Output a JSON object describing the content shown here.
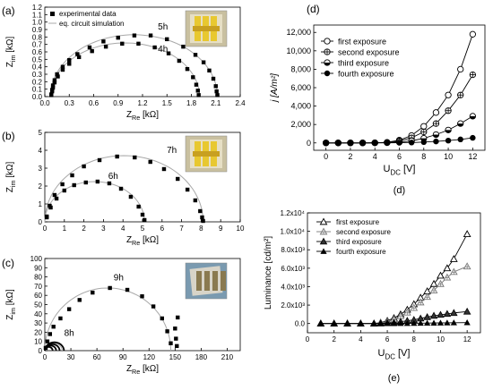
{
  "chart_data": [
    {
      "panel": "(a)",
      "type": "scatter",
      "xlim": [
        0,
        2.4
      ],
      "ylim": [
        0,
        1.2
      ],
      "xticks": [
        "0.0",
        "0.3",
        "0.6",
        "0.9",
        "1.2",
        "1.5",
        "1.8",
        "2.1",
        "2.4"
      ],
      "yticks": [
        "0.0",
        "0.1",
        "0.2",
        "0.3",
        "0.4",
        "0.5",
        "0.6",
        "0.7",
        "0.8",
        "0.9",
        "1.0",
        "1.1",
        "1.2"
      ],
      "xlabel": "Z",
      "xlabel_sub": "Re",
      "xlabel_unit": " [kΩ]",
      "ylabel": "Z",
      "ylabel_sub": "im",
      "ylabel_unit": " [kΩ]",
      "legend": [
        "experimental data",
        "eq. circuit simulation"
      ],
      "series": [
        {
          "name": "5h",
          "r0": 0.07,
          "r1": 2.12,
          "peak": 0.83,
          "points": [
            [
              0.08,
              0.03
            ],
            [
              0.09,
              0.09
            ],
            [
              0.1,
              0.15
            ],
            [
              0.12,
              0.22
            ],
            [
              0.15,
              0.3
            ],
            [
              0.22,
              0.4
            ],
            [
              0.3,
              0.49
            ],
            [
              0.4,
              0.57
            ],
            [
              0.55,
              0.66
            ],
            [
              0.72,
              0.74
            ],
            [
              0.9,
              0.79
            ],
            [
              1.1,
              0.82
            ],
            [
              1.3,
              0.82
            ],
            [
              1.5,
              0.77
            ],
            [
              1.7,
              0.67
            ],
            [
              1.85,
              0.56
            ],
            [
              1.95,
              0.46
            ],
            [
              2.02,
              0.35
            ],
            [
              2.07,
              0.24
            ],
            [
              2.1,
              0.14
            ],
            [
              2.11,
              0.07
            ],
            [
              2.12,
              0.02
            ]
          ]
        },
        {
          "name": "4h",
          "r0": 0.07,
          "r1": 1.9,
          "peak": 0.72,
          "points": [
            [
              0.08,
              0.02
            ],
            [
              0.09,
              0.07
            ],
            [
              0.1,
              0.12
            ],
            [
              0.12,
              0.19
            ],
            [
              0.16,
              0.27
            ],
            [
              0.22,
              0.36
            ],
            [
              0.3,
              0.44
            ],
            [
              0.42,
              0.53
            ],
            [
              0.58,
              0.61
            ],
            [
              0.75,
              0.67
            ],
            [
              0.95,
              0.71
            ],
            [
              1.15,
              0.71
            ],
            [
              1.35,
              0.66
            ],
            [
              1.52,
              0.58
            ],
            [
              1.65,
              0.48
            ],
            [
              1.75,
              0.37
            ],
            [
              1.82,
              0.26
            ],
            [
              1.86,
              0.16
            ],
            [
              1.88,
              0.08
            ],
            [
              1.89,
              0.02
            ]
          ]
        }
      ]
    },
    {
      "panel": "(b)",
      "type": "scatter",
      "xlim": [
        0,
        10
      ],
      "ylim": [
        0,
        5
      ],
      "xticks": [
        "0",
        "1",
        "2",
        "3",
        "4",
        "5",
        "6",
        "7",
        "8",
        "9",
        "10"
      ],
      "yticks": [
        "0",
        "1",
        "2",
        "3",
        "4",
        "5"
      ],
      "xlabel": "Z",
      "xlabel_sub": "Re",
      "xlabel_unit": " [kΩ]",
      "ylabel": "Z",
      "ylabel_sub": "im",
      "ylabel_unit": " [kΩ]",
      "series": [
        {
          "name": "7h",
          "r0": 0.0,
          "r1": 8.1,
          "peak": 3.7,
          "points": [
            [
              0.1,
              0.3
            ],
            [
              0.25,
              0.9
            ],
            [
              0.5,
              1.5
            ],
            [
              0.9,
              2.1
            ],
            [
              1.4,
              2.6
            ],
            [
              2.0,
              3.1
            ],
            [
              2.8,
              3.45
            ],
            [
              3.7,
              3.65
            ],
            [
              4.6,
              3.6
            ],
            [
              5.4,
              3.35
            ],
            [
              6.1,
              2.95
            ],
            [
              6.8,
              2.4
            ],
            [
              7.3,
              1.8
            ],
            [
              7.7,
              1.2
            ],
            [
              7.95,
              0.6
            ],
            [
              8.05,
              0.25
            ],
            [
              8.1,
              0.05
            ]
          ]
        },
        {
          "name": "6h",
          "r0": 0.0,
          "r1": 5.1,
          "peak": 2.25,
          "points": [
            [
              0.1,
              0.25
            ],
            [
              0.3,
              0.8
            ],
            [
              0.6,
              1.3
            ],
            [
              1.0,
              1.75
            ],
            [
              1.5,
              2.05
            ],
            [
              2.1,
              2.2
            ],
            [
              2.7,
              2.25
            ],
            [
              3.3,
              2.15
            ],
            [
              3.9,
              1.85
            ],
            [
              4.4,
              1.4
            ],
            [
              4.8,
              0.85
            ],
            [
              5.0,
              0.4
            ],
            [
              5.1,
              0.1
            ]
          ]
        }
      ]
    },
    {
      "panel": "(c)",
      "type": "scatter",
      "xlim": [
        0,
        225
      ],
      "ylim": [
        0,
        100
      ],
      "xticks": [
        "0",
        "30",
        "60",
        "90",
        "120",
        "150",
        "180",
        "210"
      ],
      "yticks": [
        "0",
        "10",
        "20",
        "30",
        "40",
        "50",
        "60",
        "70",
        "80",
        "90",
        "100"
      ],
      "xlabel": "Z",
      "xlabel_sub": "Re",
      "xlabel_unit": " [kΩ]",
      "ylabel": "Z",
      "ylabel_sub": "im",
      "ylabel_unit": " [kΩ]",
      "series": [
        {
          "name": "9h",
          "r0": 0.0,
          "r1": 145,
          "peak": 68,
          "points": [
            [
              1,
              3
            ],
            [
              3,
              10
            ],
            [
              6,
              18
            ],
            [
              10,
              26
            ],
            [
              18,
              35
            ],
            [
              28,
              45
            ],
            [
              40,
              55
            ],
            [
              55,
              63
            ],
            [
              75,
              68
            ],
            [
              95,
              66
            ],
            [
              112,
              59
            ],
            [
              125,
              48
            ],
            [
              135,
              35
            ],
            [
              141,
              21
            ],
            [
              145,
              8
            ],
            [
              151,
              13
            ],
            [
              153,
              36
            ],
            [
              150,
              24
            ],
            [
              152,
              5
            ]
          ]
        },
        {
          "name": "8h",
          "r0": 0.0,
          "r1": 20,
          "peak": 8,
          "points": [
            [
              1,
              2
            ],
            [
              2,
              5
            ],
            [
              4,
              7
            ],
            [
              7,
              8
            ],
            [
              10,
              8
            ],
            [
              13,
              7
            ],
            [
              16,
              5
            ],
            [
              18,
              3
            ],
            [
              19,
              1
            ]
          ]
        }
      ]
    },
    {
      "panel": "(d)",
      "type": "line",
      "x": [
        0,
        1,
        2,
        3,
        4,
        5,
        6,
        7,
        8,
        9,
        10,
        11,
        12
      ],
      "xlim": [
        -1,
        13
      ],
      "ylim": [
        -800,
        12800
      ],
      "xticks": [
        "0",
        "2",
        "4",
        "6",
        "8",
        "10",
        "12"
      ],
      "yticks": [
        "0",
        "2,000",
        "4,000",
        "6,000",
        "8,000",
        "10,000",
        "12,000"
      ],
      "xlabel": "U",
      "xlabel_sub": "DC",
      "xlabel_unit": " [V]",
      "ylabel": "j [A/m²]",
      "legend_position": "top-left",
      "series": [
        {
          "name": "first exposure",
          "marker": "open-circle",
          "values": [
            0,
            0,
            0,
            0,
            10,
            60,
            300,
            800,
            1800,
            3300,
            5200,
            8000,
            11800
          ]
        },
        {
          "name": "second exposure",
          "marker": "plus-circle",
          "values": [
            0,
            0,
            0,
            0,
            10,
            50,
            220,
            550,
            1200,
            2100,
            3500,
            5200,
            7400
          ]
        },
        {
          "name": "third exposure",
          "marker": "half-circle",
          "values": [
            0,
            0,
            0,
            0,
            5,
            20,
            90,
            220,
            500,
            900,
            1400,
            2100,
            2900
          ]
        },
        {
          "name": "fourth exposure",
          "marker": "filled-circle",
          "values": [
            0,
            0,
            0,
            0,
            2,
            5,
            15,
            40,
            90,
            160,
            250,
            380,
            550
          ]
        }
      ],
      "caption": "(d)"
    },
    {
      "panel": "(e)",
      "type": "line",
      "x": [
        1,
        2,
        3,
        4,
        5,
        5.5,
        6,
        6.5,
        7,
        7.5,
        8,
        8.5,
        9,
        9.5,
        10,
        10.5,
        11,
        12
      ],
      "xlim": [
        0,
        13
      ],
      "ylim": [
        -1000,
        12000
      ],
      "xticks": [
        "0",
        "2",
        "4",
        "6",
        "8",
        "10",
        "12"
      ],
      "yticks": [
        "0.0",
        "2.0x10³",
        "4.0x10³",
        "6.0x10³",
        "8.0x10³",
        "1.0x10⁴",
        "1.2x10⁴"
      ],
      "xlabel": "U",
      "xlabel_sub": "DC",
      "xlabel_unit": " [V]",
      "ylabel": "Luminance [cd/m²]",
      "legend_position": "top-left",
      "series": [
        {
          "name": "first exposure",
          "marker": "open-triangle",
          "values": [
            0,
            0,
            0,
            0,
            0,
            100,
            300,
            600,
            1000,
            1500,
            2100,
            2800,
            3500,
            4300,
            5200,
            6000,
            7000,
            9700
          ]
        },
        {
          "name": "second exposure",
          "marker": "plus-triangle",
          "values": [
            0,
            0,
            0,
            0,
            0,
            80,
            200,
            450,
            800,
            1200,
            1700,
            2300,
            2900,
            3600,
            4300,
            5000,
            5600,
            6200
          ]
        },
        {
          "name": "third exposure",
          "marker": "half-triangle",
          "values": [
            0,
            0,
            0,
            0,
            0,
            20,
            50,
            100,
            200,
            300,
            400,
            550,
            700,
            850,
            950,
            1050,
            1150,
            1300
          ]
        },
        {
          "name": "fourth exposure",
          "marker": "filled-triangle",
          "values": [
            0,
            0,
            0,
            0,
            0,
            0,
            5,
            10,
            15,
            20,
            30,
            40,
            50,
            60,
            70,
            80,
            90,
            100
          ]
        }
      ],
      "caption": "(e)"
    }
  ],
  "colors": {
    "simulation_line": "#a8a8a8",
    "marker": "#000000",
    "photo_bg": "#c9c0a0",
    "photo_yellow": "#e8c830"
  }
}
